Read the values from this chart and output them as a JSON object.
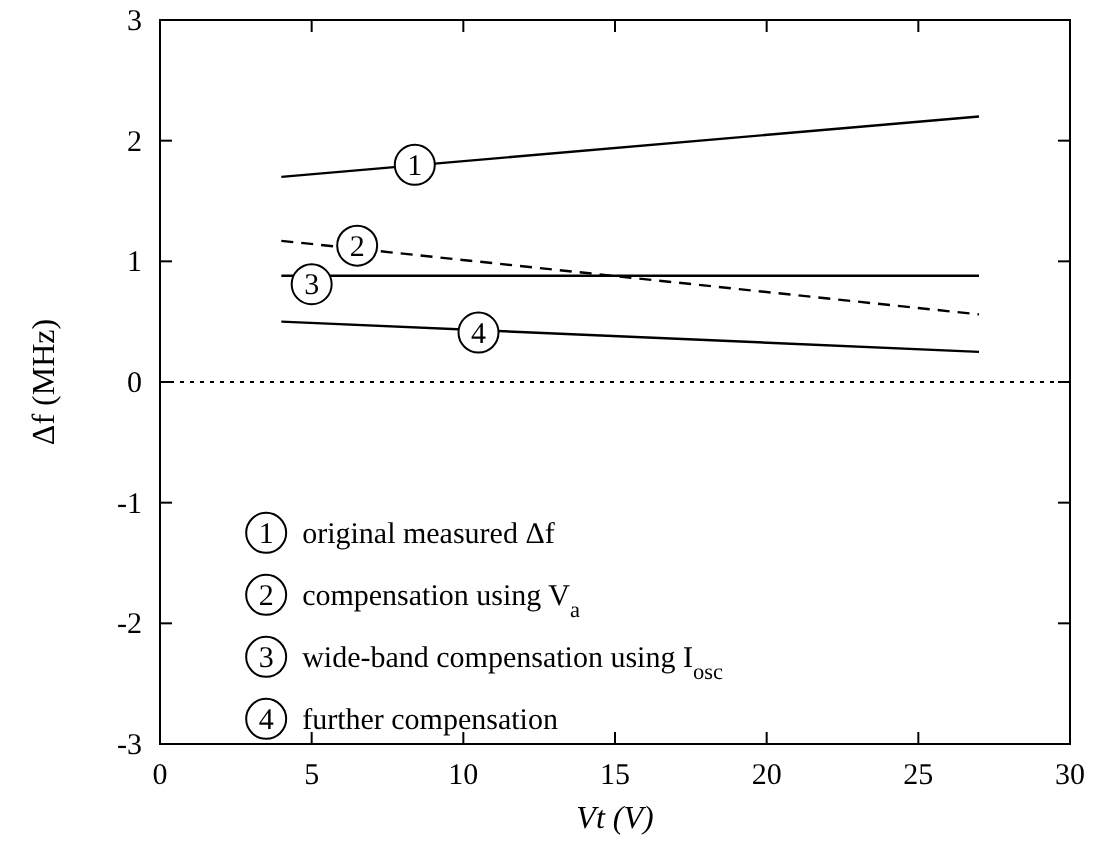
{
  "chart_data": {
    "type": "line",
    "xlabel": "Vt (V)",
    "ylabel": "Δf  (MHz)",
    "xlim": [
      0,
      30
    ],
    "xticks": [
      0,
      5,
      10,
      15,
      20,
      25,
      30
    ],
    "ylim": [
      -3,
      3
    ],
    "yticks": [
      -3,
      -2,
      -1,
      0,
      1,
      2,
      3
    ],
    "grid": false,
    "legend": "bottom left",
    "x": [
      4,
      27
    ],
    "series": [
      {
        "name": "original measured Δf",
        "color": "#000000",
        "values": [
          1.7,
          2.2
        ],
        "line_style": "solid"
      },
      {
        "name": "compensation using V$_{a}$",
        "color": "#000000",
        "values": [
          1.17,
          0.56
        ],
        "line_style": "dashed"
      },
      {
        "name": "wide-band compensation using I$_{osc}$",
        "color": "#000000",
        "values": [
          0.88,
          0.88
        ],
        "line_style": "solid"
      },
      {
        "name": "further compensation",
        "color": "#000000",
        "values": [
          0.5,
          0.25
        ],
        "line_style": "solid"
      }
    ],
    "ref_lines": [
      {
        "axis": "y",
        "value": 0,
        "label": null,
        "line_style": "dotted",
        "color": "#000000"
      }
    ],
    "annotations": [
      {
        "text": "1",
        "x": 8.4,
        "y": 1.8
      },
      {
        "text": "2",
        "x": 6.5,
        "y": 1.13
      },
      {
        "text": "3",
        "x": 5,
        "y": 0.81
      },
      {
        "text": "4",
        "x": 10.5,
        "y": 0.41
      }
    ]
  }
}
